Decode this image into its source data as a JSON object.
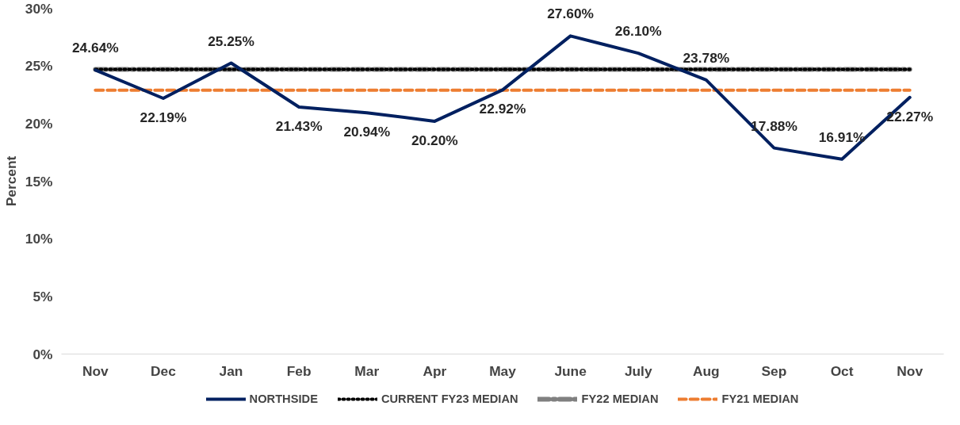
{
  "chart_data": {
    "type": "line",
    "ylabel": "Percent",
    "categories": [
      "Nov",
      "Dec",
      "Jan",
      "Feb",
      "Mar",
      "Apr",
      "May",
      "June",
      "July",
      "Aug",
      "Sep",
      "Oct",
      "Nov"
    ],
    "ylim": [
      0,
      30
    ],
    "yticks": [
      {
        "value": 0,
        "label": "0%"
      },
      {
        "value": 5,
        "label": "5%"
      },
      {
        "value": 10,
        "label": "10%"
      },
      {
        "value": 15,
        "label": "15%"
      },
      {
        "value": 20,
        "label": "20%"
      },
      {
        "value": 25,
        "label": "25%"
      },
      {
        "value": 30,
        "label": "30%"
      }
    ],
    "grid": false,
    "legend": "bottom",
    "marker": "none",
    "series": [
      {
        "name": "NORTHSIDE",
        "color": "#002060",
        "line_style": "solid",
        "values": [
          24.64,
          22.19,
          25.25,
          21.43,
          20.94,
          20.2,
          22.92,
          27.6,
          26.1,
          23.78,
          17.88,
          16.91,
          22.27
        ],
        "value_labels": [
          "24.64%",
          "22.19%",
          "25.25%",
          "21.43%",
          "20.94%",
          "20.20%",
          "22.92%",
          "27.60%",
          "26.10%",
          "23.78%",
          "17.88%",
          "16.91%",
          "22.27%"
        ]
      },
      {
        "name": "CURRENT FY23 MEDIAN",
        "color": "#000000",
        "line_style": "dotted",
        "values": [
          24.7,
          24.7,
          24.7,
          24.7,
          24.7,
          24.7,
          24.7,
          24.7,
          24.7,
          24.7,
          24.7,
          24.7,
          24.7
        ]
      },
      {
        "name": "FY22 MEDIAN",
        "color": "#808080",
        "line_style": "dashed",
        "values": [
          24.7,
          24.7,
          24.7,
          24.7,
          24.7,
          24.7,
          24.7,
          24.7,
          24.7,
          24.7,
          24.7,
          24.7,
          24.7
        ]
      },
      {
        "name": "FY21 MEDIAN",
        "color": "#ed7d31",
        "line_style": "dashed",
        "values": [
          22.9,
          22.9,
          22.9,
          22.9,
          22.9,
          22.9,
          22.9,
          22.9,
          22.9,
          22.9,
          22.9,
          22.9,
          22.9
        ]
      }
    ]
  }
}
